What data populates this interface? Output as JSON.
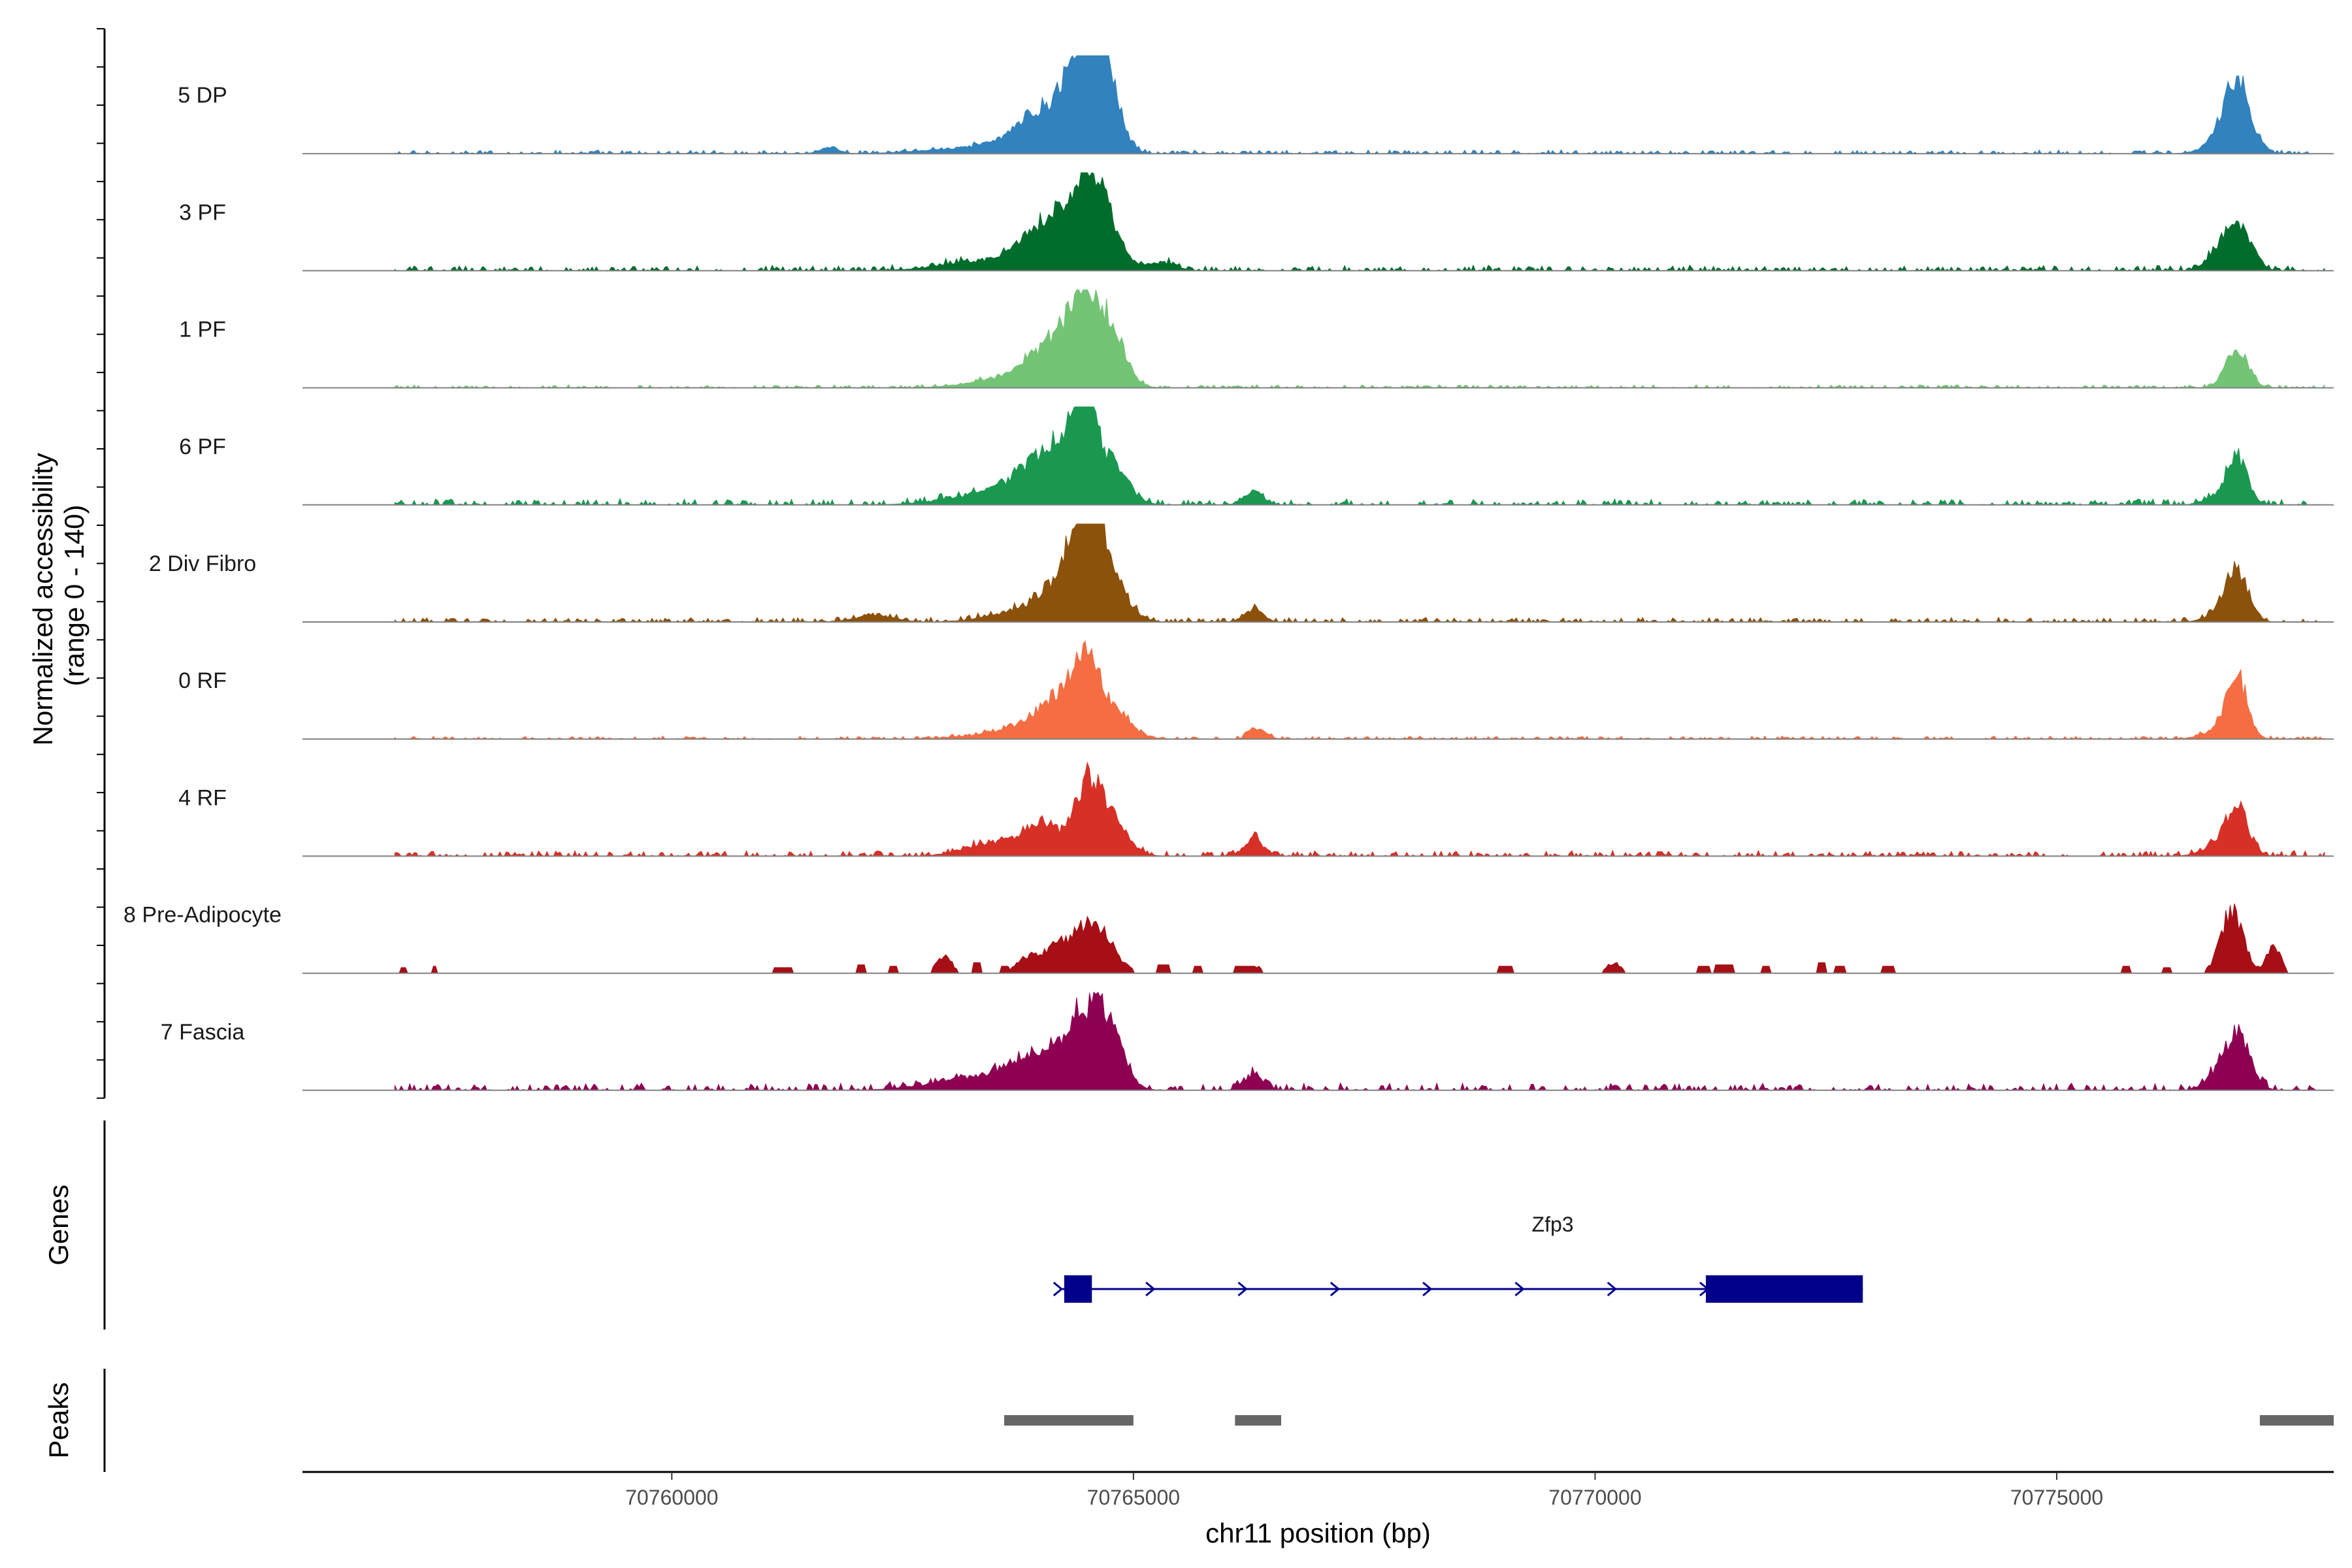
{
  "chart_data": {
    "type": "area",
    "chromosome": "chr11",
    "xlim": [
      70756000,
      70778000
    ],
    "ylim": [
      0,
      140
    ],
    "ylabel_line1": "Normalized accessibility",
    "ylabel_line2": "(range 0 - 140)",
    "xlabel": "chr11 position (bp)",
    "x_ticks": [
      70760000,
      70765000,
      70770000,
      70775000
    ],
    "x_tick_labels": [
      "70760000",
      "70765000",
      "70770000",
      "70775000"
    ],
    "data_region": [
      70757000,
      70777900
    ],
    "series": [
      {
        "name": "5 DP",
        "color": "#3182BD",
        "noise": 5,
        "peaks": [
          [
            70763300,
            500,
            8
          ],
          [
            70763850,
            300,
            20
          ],
          [
            70764150,
            250,
            55
          ],
          [
            70764400,
            120,
            100
          ],
          [
            70764600,
            120,
            115
          ],
          [
            70764700,
            150,
            90
          ],
          [
            70761700,
            100,
            8
          ],
          [
            70776950,
            140,
            105
          ],
          [
            70776700,
            150,
            10
          ]
        ]
      },
      {
        "name": "3 PF",
        "color": "#006D2C",
        "noise": 7,
        "peaks": [
          [
            70763300,
            400,
            12
          ],
          [
            70763900,
            250,
            35
          ],
          [
            70764200,
            200,
            60
          ],
          [
            70764500,
            150,
            115
          ],
          [
            70764750,
            150,
            55
          ],
          [
            70765300,
            150,
            12
          ],
          [
            70776950,
            140,
            70
          ],
          [
            70776700,
            120,
            15
          ]
        ]
      },
      {
        "name": "1 PF",
        "color": "#74C476",
        "noise": 4,
        "peaks": [
          [
            70763700,
            400,
            15
          ],
          [
            70764150,
            250,
            55
          ],
          [
            70764500,
            180,
            115
          ],
          [
            70764800,
            150,
            50
          ],
          [
            70776950,
            120,
            55
          ]
        ]
      },
      {
        "name": "6 PF",
        "color": "#1A9850",
        "noise": 8,
        "peaks": [
          [
            70763300,
            400,
            12
          ],
          [
            70763900,
            300,
            35
          ],
          [
            70764200,
            250,
            55
          ],
          [
            70764450,
            130,
            120
          ],
          [
            70764750,
            180,
            55
          ],
          [
            70766300,
            100,
            20
          ],
          [
            70776950,
            110,
            70
          ],
          [
            70776700,
            120,
            10
          ]
        ]
      },
      {
        "name": "2 Div Fibro",
        "color": "#8C510A",
        "noise": 6,
        "peaks": [
          [
            70762200,
            200,
            10
          ],
          [
            70763800,
            350,
            15
          ],
          [
            70764300,
            250,
            60
          ],
          [
            70764500,
            150,
            130
          ],
          [
            70764750,
            180,
            55
          ],
          [
            70766300,
            100,
            18
          ],
          [
            70776950,
            120,
            75
          ],
          [
            70776700,
            120,
            8
          ]
        ]
      },
      {
        "name": "0 RF",
        "color": "#F46D43",
        "noise": 4,
        "peaks": [
          [
            70763800,
            400,
            15
          ],
          [
            70764250,
            250,
            55
          ],
          [
            70764500,
            140,
            75
          ],
          [
            70764800,
            180,
            35
          ],
          [
            70766350,
            90,
            15
          ],
          [
            70776950,
            110,
            90
          ],
          [
            70776700,
            150,
            10
          ]
        ]
      },
      {
        "name": "4 RF",
        "color": "#D73027",
        "noise": 7,
        "peaks": [
          [
            70763500,
            300,
            20
          ],
          [
            70764000,
            180,
            45
          ],
          [
            70764500,
            150,
            95
          ],
          [
            70764750,
            180,
            45
          ],
          [
            70766300,
            100,
            25
          ],
          [
            70776950,
            120,
            70
          ],
          [
            70776700,
            150,
            12
          ]
        ]
      },
      {
        "name": "8 Pre-Adipocyte",
        "color": "#A50F15",
        "noise": 0,
        "blocky": true,
        "peaks": [
          [
            70764550,
            200,
            75
          ],
          [
            70764150,
            150,
            30
          ],
          [
            70763850,
            120,
            20
          ],
          [
            70762950,
            80,
            25
          ],
          [
            70776900,
            120,
            90
          ],
          [
            70777350,
            80,
            35
          ],
          [
            70766300,
            100,
            10
          ],
          [
            70770200,
            80,
            15
          ]
        ],
        "blocks": [
          [
            70757050,
            70757120,
            8
          ],
          [
            70757400,
            70757450,
            10
          ],
          [
            70761100,
            70761300,
            8
          ],
          [
            70762000,
            70762100,
            12
          ],
          [
            70762350,
            70762450,
            10
          ],
          [
            70763250,
            70763350,
            15
          ],
          [
            70763550,
            70763650,
            10
          ],
          [
            70765250,
            70765400,
            12
          ],
          [
            70765650,
            70765750,
            10
          ],
          [
            70766100,
            70766300,
            10
          ],
          [
            70768950,
            70769100,
            10
          ],
          [
            70771100,
            70771250,
            10
          ],
          [
            70771300,
            70771500,
            12
          ],
          [
            70771800,
            70771900,
            10
          ],
          [
            70772400,
            70772500,
            15
          ],
          [
            70772600,
            70772700,
            10
          ],
          [
            70773100,
            70773250,
            10
          ],
          [
            70775700,
            70775800,
            10
          ],
          [
            70776150,
            70776250,
            8
          ]
        ]
      },
      {
        "name": "7 Fascia",
        "color": "#8E0152",
        "noise": 9,
        "peaks": [
          [
            70763400,
            500,
            20
          ],
          [
            70764050,
            300,
            45
          ],
          [
            70764500,
            200,
            90
          ],
          [
            70764750,
            160,
            55
          ],
          [
            70766300,
            100,
            22
          ],
          [
            70776950,
            140,
            75
          ],
          [
            70776700,
            120,
            12
          ]
        ]
      }
    ],
    "genes": [
      {
        "name": "Zfp3",
        "strand": "+",
        "start": 70764200,
        "end": 70772900,
        "exons": [
          [
            70764250,
            70764550
          ],
          [
            70771200,
            70772900
          ]
        ]
      }
    ],
    "peaks_track": [
      [
        70763600,
        70765000
      ],
      [
        70766100,
        70766600
      ],
      [
        70777200,
        70778000
      ]
    ],
    "peak_color": "#666666",
    "gene_color": "#00008B",
    "baseline_color": "#808080"
  },
  "labels": {
    "genes_track": "Genes",
    "peaks_track": "Peaks"
  }
}
